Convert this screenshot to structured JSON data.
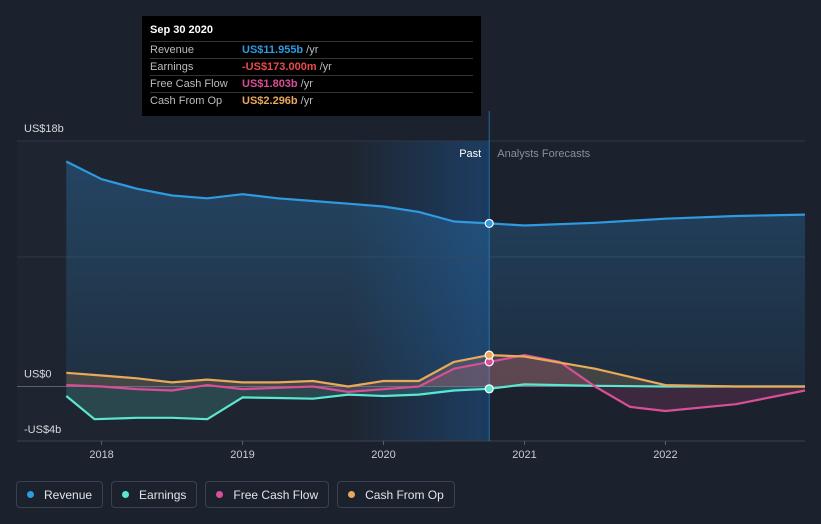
{
  "tooltip": {
    "date": "Sep 30 2020",
    "rows": [
      {
        "label": "Revenue",
        "value": "US$11.955b",
        "unit": "/yr",
        "color": "#2f9ae0"
      },
      {
        "label": "Earnings",
        "value": "-US$173.000m",
        "unit": "/yr",
        "color": "#e84b4b"
      },
      {
        "label": "Free Cash Flow",
        "value": "US$1.803b",
        "unit": "/yr",
        "color": "#d94f97"
      },
      {
        "label": "Cash From Op",
        "value": "US$2.296b",
        "unit": "/yr",
        "color": "#e8a95a"
      }
    ]
  },
  "legend": [
    {
      "label": "Revenue",
      "color": "#2f9ae0"
    },
    {
      "label": "Earnings",
      "color": "#5ce6d0"
    },
    {
      "label": "Free Cash Flow",
      "color": "#d94f97"
    },
    {
      "label": "Cash From Op",
      "color": "#e8a95a"
    }
  ],
  "chart_data": {
    "type": "line",
    "title": "",
    "xlabel": "",
    "ylabel": "",
    "x_ticks": [
      "2018",
      "2019",
      "2020",
      "2021",
      "2022"
    ],
    "x_tick_values": [
      2018,
      2019,
      2020,
      2021,
      2022
    ],
    "xlim": [
      2017.4,
      2022.99
    ],
    "ylim": [
      -4,
      18
    ],
    "y_tick_labels": [
      {
        "label": "US$18b",
        "value": 18
      },
      {
        "label": "US$0",
        "value": 0
      },
      {
        "label": "-US$4b",
        "value": -4
      }
    ],
    "past_label": "Past",
    "forecast_label": "Analysts Forecasts",
    "highlight_start": 2019.75,
    "divider_x": 2020.75,
    "series": [
      {
        "name": "Revenue",
        "color": "#2f9ae0",
        "x": [
          2017.75,
          2018.0,
          2018.25,
          2018.5,
          2018.75,
          2019.0,
          2019.25,
          2019.5,
          2019.75,
          2020.0,
          2020.25,
          2020.5,
          2020.75,
          2021.0,
          2021.5,
          2022.0,
          2022.5,
          2022.99
        ],
        "y": [
          16.5,
          15.2,
          14.5,
          14.0,
          13.8,
          14.1,
          13.8,
          13.6,
          13.4,
          13.2,
          12.8,
          12.1,
          11.955,
          11.8,
          12.0,
          12.3,
          12.5,
          12.6
        ]
      },
      {
        "name": "Earnings",
        "color": "#5ce6d0",
        "x": [
          2017.75,
          2017.95,
          2018.25,
          2018.5,
          2018.75,
          2019.0,
          2019.25,
          2019.5,
          2019.75,
          2020.0,
          2020.25,
          2020.5,
          2020.75,
          2021.0,
          2021.5,
          2022.0,
          2022.5,
          2022.99
        ],
        "y": [
          -0.7,
          -2.4,
          -2.3,
          -2.3,
          -2.4,
          -0.8,
          -0.85,
          -0.9,
          -0.6,
          -0.7,
          -0.6,
          -0.3,
          -0.173,
          0.15,
          0.05,
          0.0,
          0.0,
          0.0
        ]
      },
      {
        "name": "Free Cash Flow",
        "color": "#d94f97",
        "x": [
          2017.75,
          2018.0,
          2018.25,
          2018.5,
          2018.75,
          2019.0,
          2019.25,
          2019.5,
          2019.75,
          2020.0,
          2020.25,
          2020.5,
          2020.75,
          2021.0,
          2021.25,
          2021.5,
          2021.75,
          2022.0,
          2022.5,
          2022.99
        ],
        "y": [
          0.1,
          0.0,
          -0.2,
          -0.3,
          0.1,
          -0.2,
          -0.1,
          0.0,
          -0.4,
          -0.2,
          0.0,
          1.3,
          1.803,
          2.3,
          1.8,
          0.0,
          -1.5,
          -1.8,
          -1.3,
          -0.3
        ]
      },
      {
        "name": "Cash From Op",
        "color": "#e8a95a",
        "x": [
          2017.75,
          2018.0,
          2018.25,
          2018.5,
          2018.75,
          2019.0,
          2019.25,
          2019.5,
          2019.75,
          2020.0,
          2020.25,
          2020.5,
          2020.75,
          2021.0,
          2021.5,
          2022.0,
          2022.5,
          2022.99
        ],
        "y": [
          1.0,
          0.8,
          0.6,
          0.3,
          0.5,
          0.3,
          0.3,
          0.4,
          0.0,
          0.4,
          0.4,
          1.8,
          2.296,
          2.2,
          1.3,
          0.1,
          0.0,
          0.0
        ]
      }
    ],
    "markers": [
      {
        "series": "Revenue",
        "x": 2020.75,
        "y": 11.955
      },
      {
        "series": "Earnings",
        "x": 2020.75,
        "y": -0.173
      },
      {
        "series": "Free Cash Flow",
        "x": 2020.75,
        "y": 1.803
      },
      {
        "series": "Cash From Op",
        "x": 2020.75,
        "y": 2.296
      }
    ]
  }
}
